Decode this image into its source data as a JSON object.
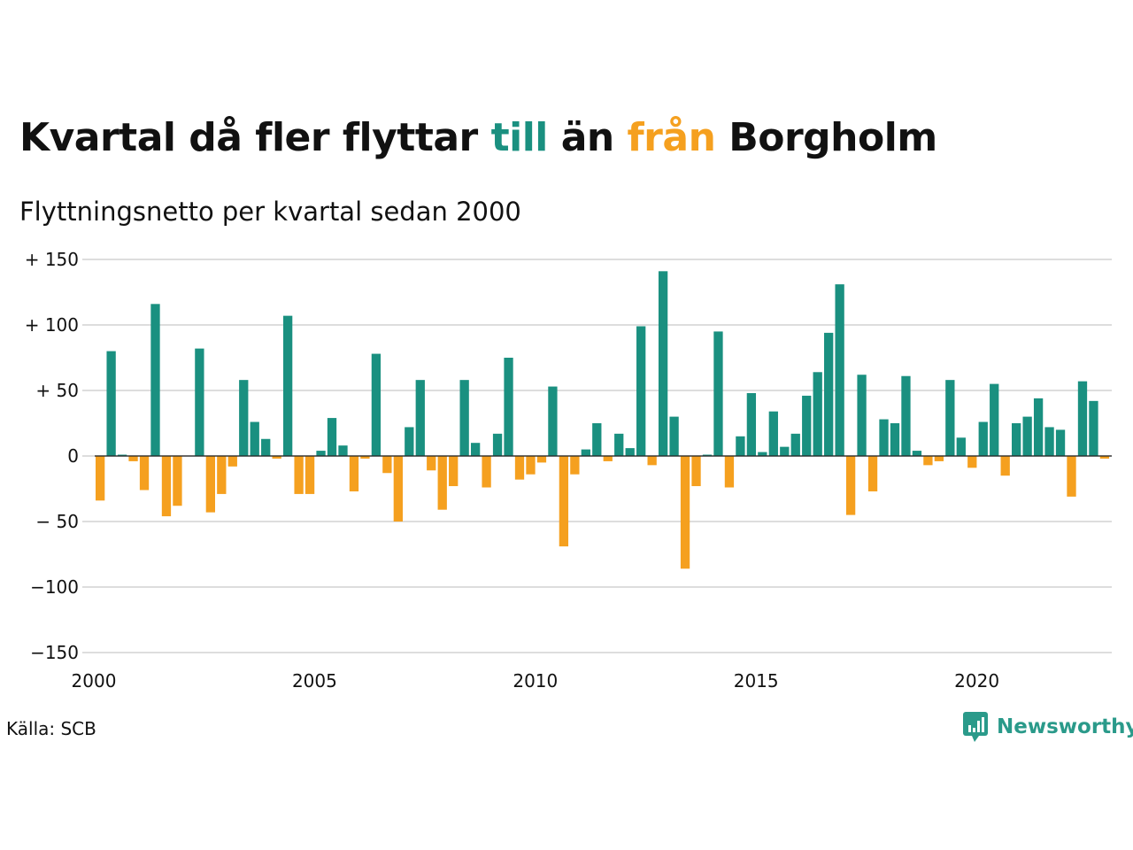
{
  "title": {
    "part1": "Kvartal då fler flyttar",
    "till": "till",
    "part2": "än",
    "fran": "från",
    "part3": "Borgholm"
  },
  "colors": {
    "positive": "#1a9080",
    "negative": "#f5a01f",
    "grid": "#dddddd",
    "text": "#111111",
    "logo": "#2a9a8a"
  },
  "source": "Källa: SCB",
  "logo": {
    "text": "Newsworthy",
    "icon": "chart-speech-bubble-icon"
  },
  "chart_data": {
    "type": "bar",
    "title": "Kvartal då fler flyttar till än från Borgholm",
    "subtitle": "Flyttningsnetto per kvartal sedan 2000",
    "xlabel": "",
    "ylabel": "",
    "ylim": [
      -150,
      150
    ],
    "yticks": [
      150,
      100,
      50,
      0,
      -50,
      -100,
      -150
    ],
    "ytick_labels": [
      "+ 150",
      "+ 100",
      "+  50",
      "0",
      "− 50",
      "−100",
      "−150"
    ],
    "xticks": [
      "2000",
      "2005",
      "2010",
      "2015",
      "2020"
    ],
    "grid": true,
    "legend": "none",
    "start_year": 2000,
    "values": [
      -34,
      80,
      1,
      -4,
      -26,
      116,
      -46,
      -38,
      0,
      82,
      -43,
      -29,
      -8,
      58,
      26,
      13,
      -2,
      107,
      -29,
      -29,
      4,
      29,
      8,
      -27,
      -2,
      78,
      -13,
      -50,
      22,
      58,
      -11,
      -41,
      -23,
      58,
      10,
      -24,
      17,
      75,
      -18,
      -14,
      -5,
      53,
      -69,
      -14,
      5,
      25,
      -4,
      17,
      6,
      99,
      -7,
      141,
      30,
      -86,
      -23,
      1,
      95,
      -24,
      15,
      48,
      3,
      34,
      7,
      17,
      46,
      64,
      94,
      131,
      -45,
      62,
      -27,
      28,
      25,
      61,
      4,
      -7,
      -4,
      58,
      14,
      -9,
      26,
      55,
      -15,
      25,
      30,
      44,
      22,
      20,
      -31,
      57,
      42,
      -2
    ]
  }
}
